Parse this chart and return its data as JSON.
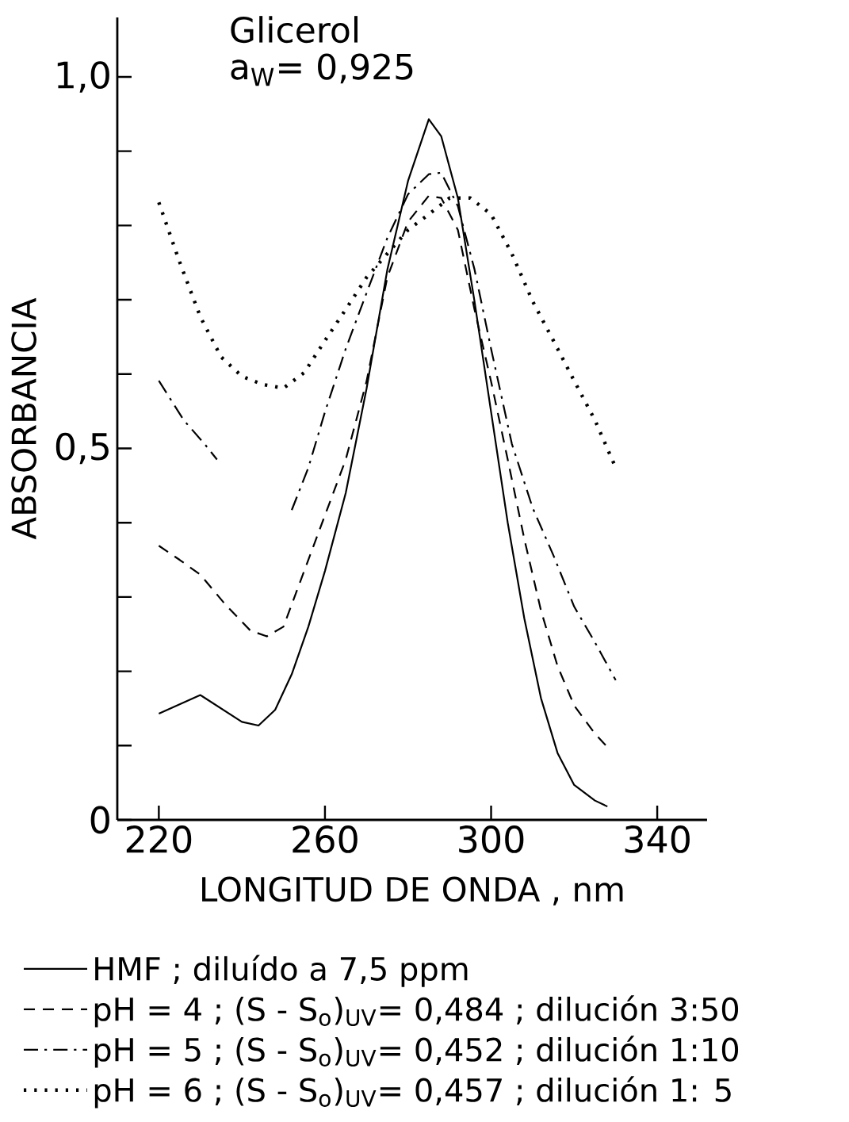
{
  "chart_data": {
    "type": "line",
    "xlabel": "LONGITUD DE ONDA , nm",
    "ylabel": "ABSORBANCIA",
    "annotations": [
      "Glicerol",
      "a$_{W}$= 0,925"
    ],
    "xlim": [
      210,
      352
    ],
    "ylim": [
      0,
      1.08
    ],
    "xticks": [
      220,
      260,
      300,
      340
    ],
    "yticks": [
      0,
      {
        "value": 0.5,
        "label": "0,5"
      },
      {
        "value": 1.0,
        "label": "1,0"
      }
    ],
    "grid": false,
    "legend": "bottom",
    "series": [
      {
        "name": "HMF ; diluído a 7,5 ppm",
        "color": "#000000",
        "line_style": "solid",
        "x": [
          220,
          230,
          240,
          244,
          248,
          252,
          256,
          260,
          265,
          270,
          275,
          280,
          285,
          288,
          292,
          296,
          300,
          304,
          308,
          312,
          316,
          320,
          325,
          328
        ],
        "values": [
          0.143,
          0.168,
          0.132,
          0.127,
          0.148,
          0.196,
          0.26,
          0.335,
          0.44,
          0.58,
          0.74,
          0.86,
          0.943,
          0.92,
          0.837,
          0.698,
          0.549,
          0.4,
          0.271,
          0.164,
          0.09,
          0.047,
          0.026,
          0.018
        ]
      },
      {
        "name": "pH = 4 ; (S - S$_{o}$)$_{UV}$= 0,484 ; dilución 3:50",
        "color": "#000000",
        "line_style": "dashed",
        "x": [
          220,
          225,
          230,
          236,
          242,
          246,
          250,
          255,
          260,
          265,
          270,
          275,
          280,
          285,
          288,
          292,
          296,
          300,
          304,
          308,
          312,
          316,
          320,
          325,
          328
        ],
        "values": [
          0.369,
          0.35,
          0.33,
          0.29,
          0.255,
          0.247,
          0.26,
          0.335,
          0.41,
          0.485,
          0.59,
          0.73,
          0.805,
          0.84,
          0.837,
          0.794,
          0.687,
          0.59,
          0.485,
          0.378,
          0.282,
          0.207,
          0.154,
          0.116,
          0.098
        ]
      },
      {
        "name": "pH = 5 ; (S - S$_{o}$)$_{UV}$= 0,452 ; dilución 1:10",
        "color": "#000000",
        "line_style": "dashdot",
        "x": [
          220,
          226,
          231,
          234,
          243,
          252,
          256,
          260,
          265,
          270,
          275,
          280,
          285,
          288,
          292,
          296,
          300,
          305,
          310,
          315,
          320,
          325,
          330
        ],
        "values": [
          0.591,
          0.538,
          0.506,
          0.485,
          null,
          0.417,
          0.474,
          0.549,
          0.634,
          0.709,
          0.783,
          0.842,
          0.869,
          0.871,
          0.826,
          0.741,
          0.634,
          0.506,
          0.42,
          0.356,
          0.287,
          0.239,
          0.188
        ]
      },
      {
        "name": "pH = 6 ; (S - S$_{o}$)$_{UV}$= 0,457 ; dilución 1: 5",
        "color": "#000000",
        "line_style": "dotted",
        "x": [
          220,
          225,
          230,
          235,
          240,
          245,
          250,
          255,
          260,
          265,
          270,
          275,
          280,
          285,
          290,
          295,
          300,
          305,
          310,
          315,
          320,
          325,
          330
        ],
        "values": [
          0.831,
          0.751,
          0.677,
          0.623,
          0.597,
          0.586,
          0.581,
          0.602,
          0.645,
          0.687,
          0.73,
          0.762,
          0.794,
          0.815,
          0.837,
          0.837,
          0.815,
          0.762,
          0.698,
          0.645,
          0.591,
          0.538,
          0.474
        ]
      }
    ]
  }
}
